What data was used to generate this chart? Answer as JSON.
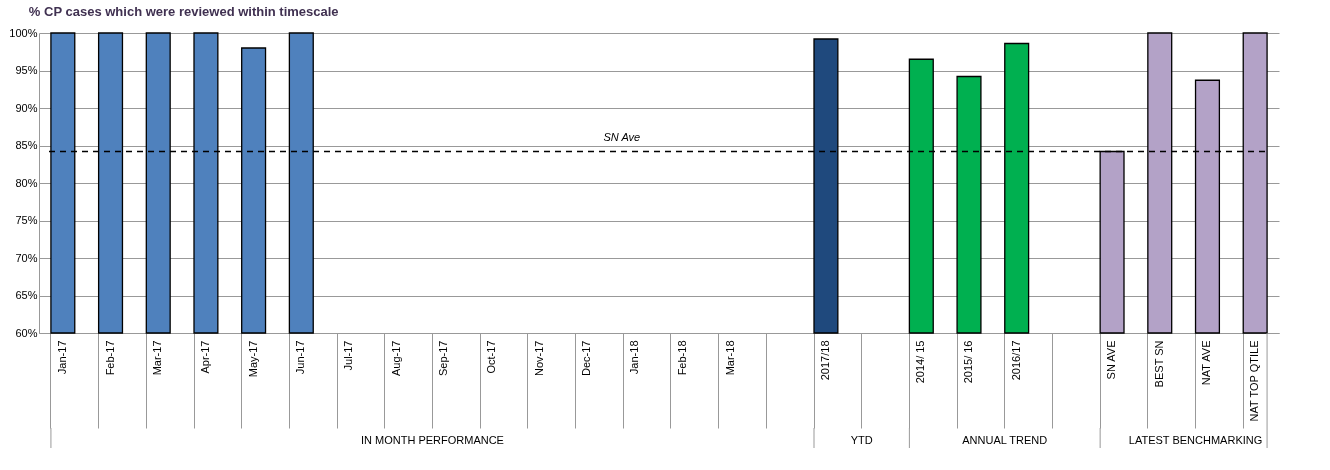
{
  "chart_data": {
    "type": "bar",
    "title": "% CP cases which were reviewed within timescale",
    "categories": [
      "Jan-17",
      "Feb-17",
      "Mar-17",
      "Apr-17",
      "May-17",
      "Jun-17",
      "Jul-17",
      "Aug-17",
      "Sep-17",
      "Oct-17",
      "Nov-17",
      "Dec-17",
      "Jan-18",
      "Feb-18",
      "Mar-18",
      null,
      "2017/18",
      null,
      "2014/ 15",
      "2015/ 16",
      "2016/17",
      null,
      "SN AVE",
      "BEST SN",
      "NAT AVE",
      "NAT TOP QTILE"
    ],
    "values": [
      100,
      100,
      100,
      100,
      98,
      100,
      null,
      null,
      null,
      null,
      null,
      null,
      null,
      null,
      null,
      null,
      99.2,
      null,
      96.5,
      94.2,
      98.6,
      null,
      84.2,
      100,
      93.7,
      100
    ],
    "colors": [
      "#4f81bd",
      "#4f81bd",
      "#4f81bd",
      "#4f81bd",
      "#4f81bd",
      "#4f81bd",
      "#4f81bd",
      "#4f81bd",
      "#4f81bd",
      "#4f81bd",
      "#4f81bd",
      "#4f81bd",
      "#4f81bd",
      "#4f81bd",
      "#4f81bd",
      "#4f81bd",
      "#1f497d",
      "#1f497d",
      "#00b050",
      "#00b050",
      "#00b050",
      "#00b050",
      "#b3a2c7",
      "#b3a2c7",
      "#b3a2c7",
      "#b3a2c7"
    ],
    "ylim": [
      60,
      100
    ],
    "yticks": [
      {
        "value": 60,
        "label": "60%"
      },
      {
        "value": 65,
        "label": "65%"
      },
      {
        "value": 70,
        "label": "70%"
      },
      {
        "value": 75,
        "label": "75%"
      },
      {
        "value": 80,
        "label": "80%"
      },
      {
        "value": 85,
        "label": "85%"
      },
      {
        "value": 90,
        "label": "90%"
      },
      {
        "value": 95,
        "label": "95%"
      },
      {
        "value": 100,
        "label": "100%"
      }
    ],
    "grid": "y",
    "ref_lines": [
      {
        "axis": "y",
        "value": 84.2,
        "label": "SN Ave",
        "color": "#000000",
        "line_style": "dashed"
      }
    ],
    "annotations": [
      "IN MONTH PERFORMANCE",
      "YTD",
      "ANNUAL TREND",
      "LATEST BENCHMARKING"
    ]
  }
}
